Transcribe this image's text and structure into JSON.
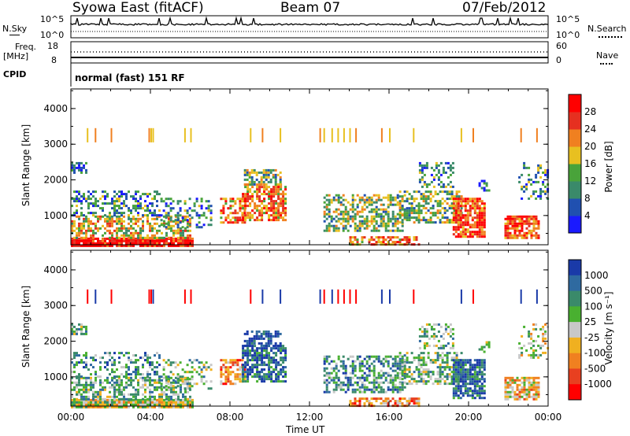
{
  "header": {
    "title": "Syowa East (fitACF)",
    "beam": "Beam 07",
    "date": "07/Feb/2012"
  },
  "status_panels": {
    "nsky_label": "N.Sky",
    "nsearch_label": "N.Search",
    "noise_ticks": [
      "10^5",
      "10^0"
    ],
    "freq_label_top": "Freq.",
    "freq_label_bottom": "[MHz]",
    "freq_ticks": [
      "18",
      "8"
    ],
    "nave_label": "Nave",
    "nave_ticks": [
      "60",
      "0"
    ],
    "cpid_label": "CPID",
    "cpid_text": "normal (fast) 151 RF"
  },
  "chart_data": [
    {
      "type": "heatmap",
      "panel": "power",
      "ylabel": "Slant Range [km]",
      "ylim": [
        180,
        4550
      ],
      "yticks": [
        "1000",
        "2000",
        "3000",
        "4000"
      ],
      "xlabel": "Time UT",
      "xticks": [
        "00:00",
        "04:00",
        "08:00",
        "12:00",
        "16:00",
        "20:00",
        "00:00"
      ],
      "colorbar": {
        "label": "Power [dB]",
        "ticks": [
          "4",
          "8",
          "12",
          "16",
          "20",
          "24",
          "28"
        ],
        "colors": [
          "#1a1aff",
          "#2050b0",
          "#3a8a6a",
          "#49a33a",
          "#e8c020",
          "#f08020",
          "#e63020",
          "#ff0000"
        ]
      }
    },
    {
      "type": "heatmap",
      "panel": "velocity",
      "ylabel": "Slant Range [km]",
      "ylim": [
        180,
        4550
      ],
      "yticks": [
        "1000",
        "2000",
        "3000",
        "4000"
      ],
      "xlabel": "Time UT",
      "xticks": [
        "00:00",
        "04:00",
        "08:00",
        "12:00",
        "16:00",
        "20:00",
        "00:00"
      ],
      "colorbar": {
        "label": "Velocity [m s⁻¹]",
        "ticks": [
          "1000",
          "500",
          "100",
          "25",
          "-25",
          "-100",
          "-500",
          "-1000"
        ],
        "colors": [
          "#1a3aa8",
          "#2f6aa0",
          "#3a8a6a",
          "#49b030",
          "#c8c8c8",
          "#f0b020",
          "#f08020",
          "#e84020",
          "#ff0000"
        ]
      }
    }
  ]
}
